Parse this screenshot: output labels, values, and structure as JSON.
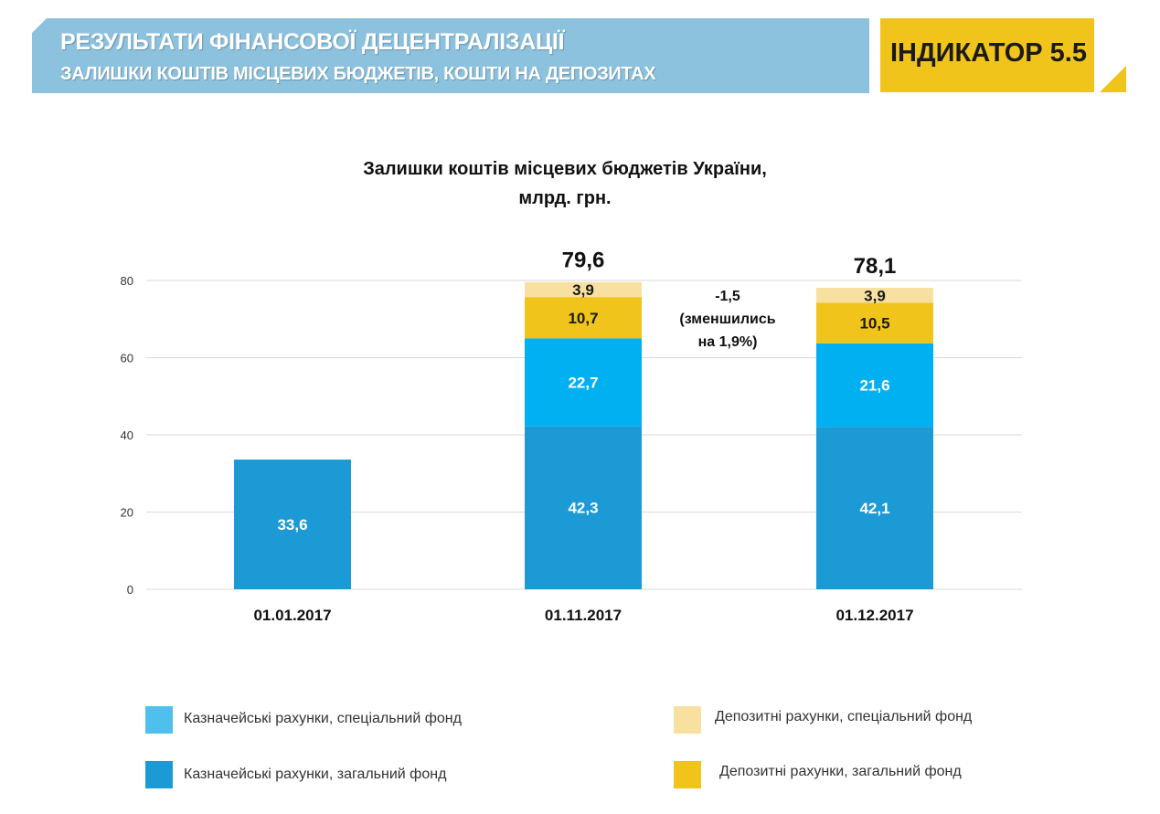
{
  "header": {
    "title": "РЕЗУЛЬТАТИ ФІНАНСОВОЇ ДЕЦЕНТРАЛІЗАЦІЇ",
    "subtitle": "ЗАЛИШКИ КОШТІВ МІСЦЕВИХ БЮДЖЕТІВ, КОШТИ НА ДЕПОЗИТАХ",
    "indicator": "ІНДИКАТОР 5.5"
  },
  "colors": {
    "banner": "#8dc2df",
    "indicator": "#f0c41b",
    "treasury_general": "#1b9ad6",
    "treasury_special": "#00b0f0",
    "deposit_general": "#f0c41b",
    "deposit_special": "#f8e1a0",
    "legend_treasury_special": "#4fc0ee"
  },
  "chart_data": {
    "type": "bar",
    "stacked": true,
    "title": "Залишки коштів місцевих бюджетів України,",
    "title_line2": "млрд. грн.",
    "categories": [
      "01.01.2017",
      "01.11.2017",
      "01.12.2017"
    ],
    "series": [
      {
        "name": "Казначейські рахунки, загальний фонд",
        "key": "treasury_general",
        "values": [
          33.6,
          42.3,
          42.1
        ],
        "labels": [
          "33,6",
          "42,3",
          "42,1"
        ]
      },
      {
        "name": "Казначейські рахунки, спеціальний фонд",
        "key": "treasury_special",
        "values": [
          0,
          22.7,
          21.6
        ],
        "labels": [
          "",
          "22,7",
          "21,6"
        ]
      },
      {
        "name": "Депозитні рахунки, загальний фонд",
        "key": "deposit_general",
        "values": [
          0,
          10.7,
          10.5
        ],
        "labels": [
          "",
          "10,7",
          "10,5"
        ]
      },
      {
        "name": "Депозитні рахунки, спеціальний фонд",
        "key": "deposit_special",
        "values": [
          0,
          3.9,
          3.9
        ],
        "labels": [
          "",
          "3,9",
          "3,9"
        ]
      }
    ],
    "totals": [
      "",
      "79,6",
      "78,1"
    ],
    "ylim": [
      0,
      80
    ],
    "yticks": [
      "0",
      "20",
      "40",
      "60",
      "80"
    ],
    "grid": true,
    "annotation": {
      "line1": "-1,5",
      "line2": "(зменшились",
      "line3": "на 1,9%)"
    },
    "legend": [
      {
        "label": "Казначейські рахунки, спеціальний фонд",
        "key": "legend_treasury_special"
      },
      {
        "label": "Депозитні рахунки, спеціальний фонд",
        "key": "deposit_special"
      },
      {
        "label": "Казначейські рахунки, загальний фонд",
        "key": "treasury_general"
      },
      {
        "label": "Депозитні рахунки, загальний фонд",
        "key": "deposit_general"
      }
    ]
  }
}
